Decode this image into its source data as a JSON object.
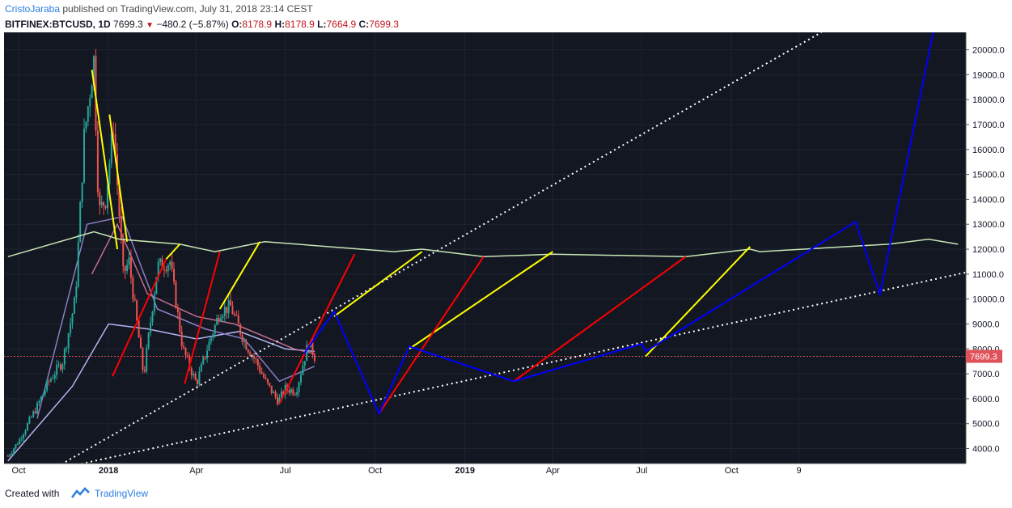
{
  "header": {
    "author": "CristoJaraba",
    "published": "published on TradingView.com, July 31, 2018 23:14 CEST",
    "symbol": "BITFINEX:BTCUSD, 1D",
    "last": "7699.3",
    "change": "−480.2 (−5.87%)",
    "open_label": "O:",
    "open": "8178.9",
    "high_label": "H:",
    "high": "8178.9",
    "low_label": "L:",
    "low": "7664.9",
    "close_label": "C:",
    "close": "7699.3"
  },
  "footer": {
    "created": "Created with",
    "brand": "TradingView"
  },
  "colors": {
    "background": "#131722",
    "up": "#26a69a",
    "down": "#ef5350",
    "price_line": "#e0525a",
    "yellow": "#ffff00",
    "red": "#ff0000",
    "blue": "#0000ff",
    "ma_green": "#c8e6b4",
    "trend_dotted": "#ffffff"
  },
  "chart_data": {
    "type": "candlestick",
    "x_axis_labels": [
      "Oct",
      "2018",
      "Apr",
      "Jul",
      "Oct",
      "2019",
      "Apr",
      "Jul",
      "Oct",
      "9"
    ],
    "y_ticks": [
      4000,
      5000,
      6000,
      7000,
      8000,
      9000,
      10000,
      11000,
      12000,
      13000,
      14000,
      15000,
      16000,
      17000,
      18000,
      19000,
      20000
    ],
    "y_range": [
      3400,
      20700
    ],
    "last_price": 7699.3,
    "price_series_approx": [
      [
        "2017-09-20",
        3700
      ],
      [
        "2017-10-01",
        4300
      ],
      [
        "2017-10-20",
        5700
      ],
      [
        "2017-11-01",
        6700
      ],
      [
        "2017-11-15",
        7500
      ],
      [
        "2017-11-28",
        10000
      ],
      [
        "2017-12-07",
        16500
      ],
      [
        "2017-12-17",
        19600
      ],
      [
        "2017-12-22",
        13500
      ],
      [
        "2017-12-29",
        14000
      ],
      [
        "2018-01-06",
        17000
      ],
      [
        "2018-01-16",
        11000
      ],
      [
        "2018-01-22",
        11500
      ],
      [
        "2018-02-06",
        6900
      ],
      [
        "2018-02-20",
        11300
      ],
      [
        "2018-03-05",
        11500
      ],
      [
        "2018-03-18",
        8000
      ],
      [
        "2018-04-01",
        6600
      ],
      [
        "2018-04-12",
        8000
      ],
      [
        "2018-04-25",
        9500
      ],
      [
        "2018-05-06",
        9700
      ],
      [
        "2018-05-20",
        8300
      ],
      [
        "2018-06-01",
        7500
      ],
      [
        "2018-06-12",
        6600
      ],
      [
        "2018-06-24",
        5900
      ],
      [
        "2018-07-01",
        6400
      ],
      [
        "2018-07-12",
        6300
      ],
      [
        "2018-07-25",
        8300
      ],
      [
        "2018-07-31",
        7699.3
      ]
    ],
    "ma_series_approx": {
      "ma_pink": [
        [
          "2017-12-15",
          11000
        ],
        [
          "2018-01-10",
          13000
        ],
        [
          "2018-02-10",
          10200
        ],
        [
          "2018-04-01",
          9300
        ],
        [
          "2018-05-10",
          9000
        ],
        [
          "2018-07-10",
          8000
        ],
        [
          "2018-07-31",
          7800
        ]
      ],
      "ma_lavender": [
        [
          "2017-09-20",
          3500
        ],
        [
          "2017-11-25",
          6500
        ],
        [
          "2018-01-01",
          9000
        ],
        [
          "2018-02-10",
          8800
        ],
        [
          "2018-04-01",
          8400
        ],
        [
          "2018-05-15",
          8700
        ],
        [
          "2018-07-01",
          8000
        ],
        [
          "2018-07-31",
          7900
        ]
      ],
      "ma_violet_short": [
        [
          "2017-10-20",
          5200
        ],
        [
          "2017-12-10",
          13000
        ],
        [
          "2018-01-15",
          13300
        ],
        [
          "2018-02-20",
          9600
        ],
        [
          "2018-04-10",
          8800
        ],
        [
          "2018-05-20",
          8400
        ],
        [
          "2018-06-25",
          6700
        ],
        [
          "2018-07-31",
          7300
        ]
      ]
    },
    "resistance_line": [
      [
        "2017-09-20",
        11700
      ],
      [
        "2017-12-17",
        12700
      ],
      [
        "2018-01-12",
        12400
      ],
      [
        "2018-03-15",
        12200
      ],
      [
        "2018-04-20",
        11900
      ],
      [
        "2018-06-10",
        12300
      ],
      [
        "2018-10-20",
        11900
      ],
      [
        "2018-11-18",
        12000
      ],
      [
        "2019-01-20",
        11700
      ],
      [
        "2019-04-01",
        11800
      ],
      [
        "2019-08-15",
        11700
      ],
      [
        "2019-10-20",
        12000
      ],
      [
        "2019-10-30",
        11900
      ],
      [
        "2020-03-10",
        12200
      ],
      [
        "2020-04-20",
        12400
      ],
      [
        "2020-05-20",
        12200
      ]
    ],
    "blue_projection": [
      [
        "2018-07-20",
        7800
      ],
      [
        "2018-08-20",
        9500
      ],
      [
        "2018-10-05",
        5400
      ],
      [
        "2018-11-05",
        8100
      ],
      [
        "2019-02-20",
        6700
      ],
      [
        "2019-07-01",
        8200
      ],
      [
        "2019-07-05",
        7900
      ],
      [
        "2020-02-05",
        13100
      ],
      [
        "2020-03-01",
        10200
      ],
      [
        "2020-04-25",
        20800
      ]
    ],
    "dotted_trendlines": [
      [
        [
          "2017-10-10",
          2600
        ],
        [
          "2020-01-01",
          20700
        ]
      ],
      [
        [
          "2017-10-31",
          3100
        ],
        [
          "2020-06-01",
          11100
        ]
      ]
    ],
    "yellow_segments": [
      [
        [
          "2017-12-15",
          19200
        ],
        [
          "2018-01-10",
          12000
        ]
      ],
      [
        [
          "2018-01-02",
          17400
        ],
        [
          "2018-01-20",
          12300
        ]
      ],
      [
        [
          "2018-03-01",
          11600
        ],
        [
          "2018-03-15",
          12200
        ]
      ],
      [
        [
          "2018-04-25",
          9600
        ],
        [
          "2018-06-05",
          12300
        ]
      ],
      [
        [
          "2018-08-20",
          9300
        ],
        [
          "2018-11-18",
          11900
        ]
      ],
      [
        [
          "2018-11-05",
          8000
        ],
        [
          "2019-04-01",
          11900
        ]
      ],
      [
        [
          "2019-07-05",
          7700
        ],
        [
          "2019-10-20",
          12100
        ]
      ]
    ],
    "red_segments": [
      [
        [
          "2018-01-05",
          6900
        ],
        [
          "2018-03-01",
          11600
        ]
      ],
      [
        [
          "2018-03-20",
          6600
        ],
        [
          "2018-04-25",
          11900
        ]
      ],
      [
        [
          "2018-06-25",
          5800
        ],
        [
          "2018-09-10",
          11800
        ]
      ],
      [
        [
          "2018-10-05",
          5400
        ],
        [
          "2019-01-20",
          11700
        ]
      ],
      [
        [
          "2019-02-20",
          6700
        ],
        [
          "2019-08-15",
          11700
        ]
      ]
    ],
    "grid": true,
    "legend": "none"
  }
}
